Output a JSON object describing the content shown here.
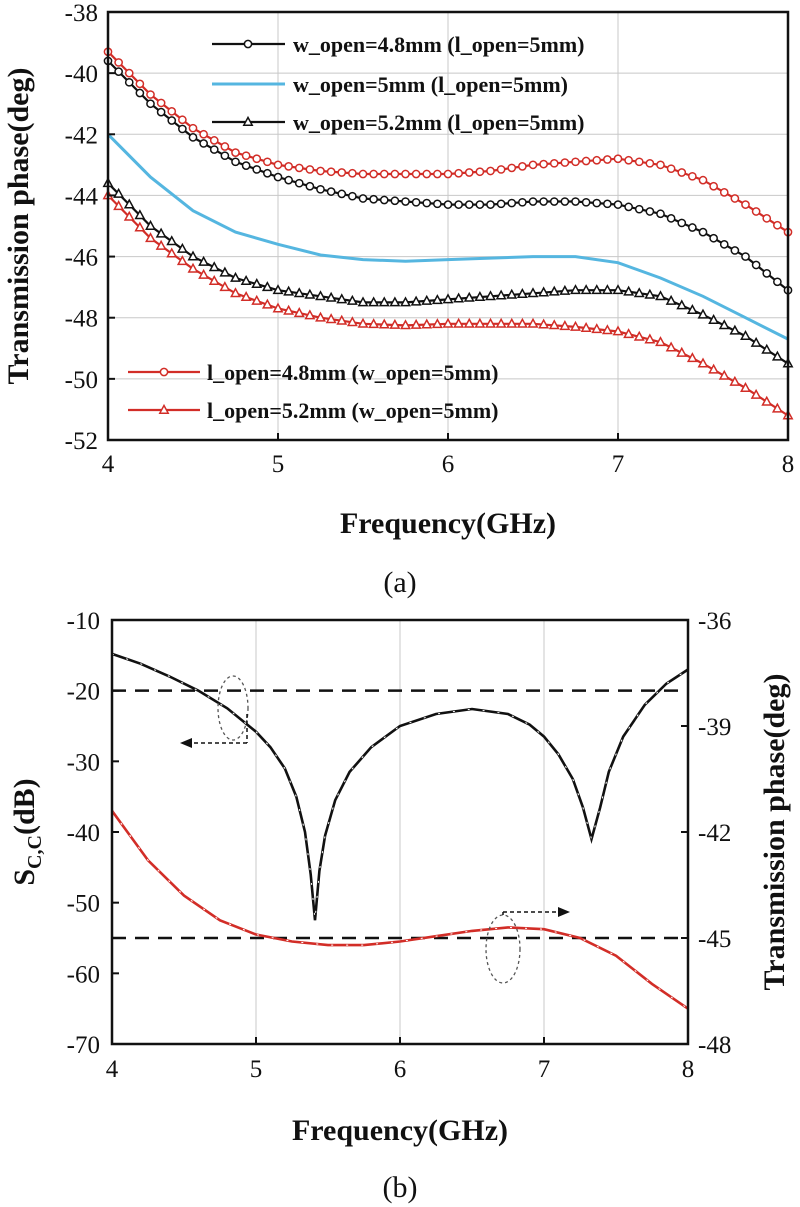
{
  "chart_data": [
    {
      "id": "a",
      "type": "line",
      "caption": "(a)",
      "xlabel": "Frequency(GHz)",
      "ylabel": "Transmission phase(deg)",
      "xlim": [
        4,
        8
      ],
      "ylim": [
        -52,
        -38
      ],
      "xticks": [
        "4",
        "5",
        "6",
        "7",
        "8"
      ],
      "yticks": [
        "-38",
        "-40",
        "-42",
        "-44",
        "-46",
        "-48",
        "-50",
        "-52"
      ],
      "grid": true,
      "legend_top": {
        "placement": "top-right",
        "entries": [
          0,
          1,
          2
        ]
      },
      "legend_bottom": {
        "placement": "bottom-left",
        "entries": [
          3,
          4
        ]
      },
      "x": [
        4.0,
        4.25,
        4.5,
        4.75,
        5.0,
        5.25,
        5.5,
        5.75,
        6.0,
        6.25,
        6.5,
        6.75,
        7.0,
        7.25,
        7.5,
        7.75,
        8.0
      ],
      "series": [
        {
          "name": "w_open=4.8mm (l_open=5mm)",
          "color": "#111111",
          "marker": "circle",
          "values": [
            -39.6,
            -41.0,
            -42.1,
            -42.9,
            -43.4,
            -43.8,
            -44.1,
            -44.2,
            -44.3,
            -44.3,
            -44.2,
            -44.2,
            -44.3,
            -44.6,
            -45.2,
            -46.0,
            -47.1
          ]
        },
        {
          "name": "w_open=5mm    (l_open=5mm)",
          "color": "#55b6e0",
          "marker": "none",
          "values": [
            -42.0,
            -43.4,
            -44.5,
            -45.2,
            -45.6,
            -45.95,
            -46.1,
            -46.15,
            -46.1,
            -46.05,
            -46.0,
            -46.0,
            -46.2,
            -46.7,
            -47.3,
            -48.0,
            -48.7
          ]
        },
        {
          "name": "w_open=5.2mm (l_open=5mm)",
          "color": "#111111",
          "marker": "triangle",
          "values": [
            -43.6,
            -45.0,
            -46.0,
            -46.7,
            -47.1,
            -47.3,
            -47.5,
            -47.5,
            -47.4,
            -47.3,
            -47.2,
            -47.1,
            -47.1,
            -47.3,
            -47.9,
            -48.6,
            -49.5
          ]
        },
        {
          "name": "l_open=4.8mm (w_open=5mm)",
          "color": "#d22d27",
          "marker": "circle",
          "values": [
            -39.3,
            -40.7,
            -41.8,
            -42.6,
            -43.0,
            -43.2,
            -43.3,
            -43.3,
            -43.3,
            -43.2,
            -43.0,
            -42.9,
            -42.8,
            -43.0,
            -43.5,
            -44.3,
            -45.2
          ]
        },
        {
          "name": "l_open=5.2mm (w_open=5mm)",
          "color": "#d22d27",
          "marker": "triangle",
          "values": [
            -44.0,
            -45.4,
            -46.4,
            -47.2,
            -47.7,
            -48.0,
            -48.2,
            -48.25,
            -48.2,
            -48.2,
            -48.2,
            -48.3,
            -48.45,
            -48.8,
            -49.5,
            -50.3,
            -51.2
          ]
        }
      ]
    },
    {
      "id": "b",
      "type": "line",
      "caption": "(b)",
      "xlabel": "Frequency(GHz)",
      "ylabel_left_main": "S",
      "ylabel_left_sub": "C,C",
      "ylabel_left_unit": "(dB)",
      "ylabel_right": "Transmission phase(deg)",
      "xlim": [
        4,
        8
      ],
      "ylim_left": [
        -70,
        -10
      ],
      "ylim_right": [
        -48,
        -36
      ],
      "xticks": [
        "4",
        "5",
        "6",
        "7",
        "8"
      ],
      "yticks_left": [
        "-10",
        "-20",
        "-30",
        "-40",
        "-50",
        "-60",
        "-70"
      ],
      "yticks_right": [
        "-36",
        "-39",
        "-42",
        "-45",
        "-48"
      ],
      "grid": true,
      "reference_lines": [
        {
          "axis": "left",
          "value": -20,
          "style": "dashed"
        },
        {
          "axis": "right",
          "value": -45,
          "style": "dashed"
        }
      ],
      "series": [
        {
          "name": "S_C,C",
          "axis": "left",
          "color": "#111111",
          "x": [
            4.0,
            4.2,
            4.4,
            4.6,
            4.8,
            5.0,
            5.1,
            5.2,
            5.28,
            5.34,
            5.38,
            5.41,
            5.44,
            5.48,
            5.55,
            5.65,
            5.8,
            6.0,
            6.25,
            6.5,
            6.75,
            6.9,
            7.0,
            7.1,
            7.2,
            7.27,
            7.33,
            7.39,
            7.45,
            7.55,
            7.7,
            7.85,
            8.0
          ],
          "values": [
            -14.8,
            -16.2,
            -18.0,
            -20.0,
            -22.5,
            -25.8,
            -28.0,
            -31.0,
            -35.0,
            -40.0,
            -46.0,
            -52.5,
            -45.5,
            -40.5,
            -35.5,
            -31.5,
            -28.0,
            -25.0,
            -23.3,
            -22.6,
            -23.3,
            -24.8,
            -26.5,
            -29.0,
            -32.5,
            -36.5,
            -41.0,
            -36.5,
            -31.5,
            -26.5,
            -22.0,
            -19.0,
            -17.0
          ]
        },
        {
          "name": "Transmission phase",
          "axis": "right",
          "color": "#d22d27",
          "x": [
            4.0,
            4.25,
            4.5,
            4.75,
            5.0,
            5.25,
            5.5,
            5.75,
            6.0,
            6.25,
            6.5,
            6.75,
            7.0,
            7.25,
            7.5,
            7.75,
            8.0
          ],
          "values": [
            -41.4,
            -42.8,
            -43.8,
            -44.5,
            -44.9,
            -45.1,
            -45.2,
            -45.2,
            -45.1,
            -44.95,
            -44.8,
            -44.7,
            -44.75,
            -45.0,
            -45.5,
            -46.3,
            -47.0
          ]
        }
      ]
    }
  ]
}
